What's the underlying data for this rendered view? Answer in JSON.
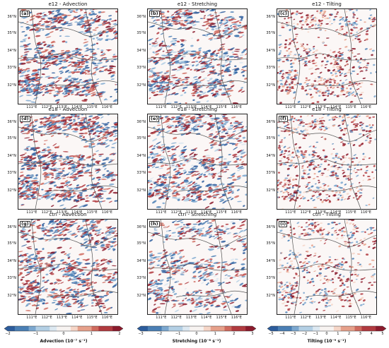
{
  "chart_data": {
    "type": "heatmap",
    "description_ref": "3x3 grid of map panels",
    "lat_ticks": [
      "36°N",
      "35°N",
      "34°N",
      "33°N",
      "32°N"
    ],
    "lon_ticks": [
      "111°E",
      "112°E",
      "113°E",
      "114°E",
      "115°E",
      "116°E"
    ],
    "panels": [
      {
        "label": "(a)",
        "title": "e12 - Advection",
        "field": "advection",
        "density": 0.95
      },
      {
        "label": "(b)",
        "title": "e12 - Stretching",
        "field": "stretching",
        "density": 0.9
      },
      {
        "label": "(c)",
        "title": "e12 - Tilting",
        "field": "tilting",
        "density": 0.75
      },
      {
        "label": "(d)",
        "title": "e18 - Advection",
        "field": "advection",
        "density": 1.0
      },
      {
        "label": "(e)",
        "title": "e18 - Stretching",
        "field": "stretching",
        "density": 0.9
      },
      {
        "label": "(f)",
        "title": "e18 - Tilting",
        "field": "tilting",
        "density": 0.75
      },
      {
        "label": "(g)",
        "title": "ctrl - Advection",
        "field": "advection",
        "density": 0.85
      },
      {
        "label": "(h)",
        "title": "ctrl - Stretching",
        "field": "stretching",
        "density": 0.7
      },
      {
        "label": "(i)",
        "title": "ctrl - Tilting",
        "field": "tilting",
        "density": 0.6
      }
    ],
    "colorbars": [
      {
        "label": "Advection (10⁻⁷ s⁻¹)",
        "ticks": [
          "−2",
          "−1",
          "0",
          "1",
          "2"
        ],
        "range": [
          -2,
          2
        ]
      },
      {
        "label": "Stretching (10⁻⁸ s⁻¹)",
        "ticks": [
          "−3",
          "−2",
          "−1",
          "0",
          "1",
          "2",
          "3"
        ],
        "range": [
          -3,
          3
        ]
      },
      {
        "label": "Tilting (10⁻⁹ s⁻¹)",
        "ticks": [
          "−5",
          "−4",
          "−3",
          "−2",
          "−1",
          "0",
          "1",
          "2",
          "3",
          "4",
          "5"
        ],
        "range": [
          -5,
          5
        ]
      }
    ],
    "colormap": [
      "#2c5c9c",
      "#4a7fb5",
      "#7ba7cf",
      "#b3cfe4",
      "#dce8f1",
      "#f7f3f1",
      "#f5d5c7",
      "#e6a08a",
      "#cf6a5e",
      "#b13a3f",
      "#8b1a2c"
    ]
  }
}
